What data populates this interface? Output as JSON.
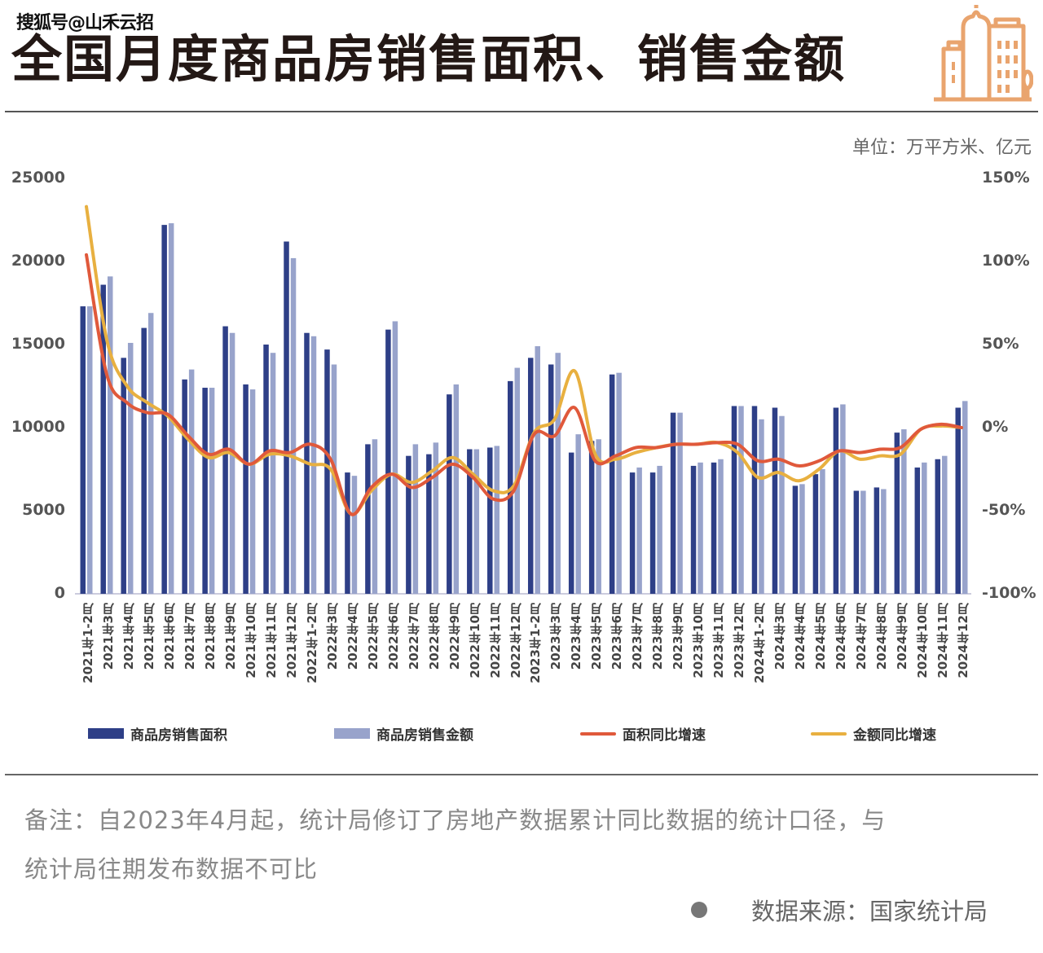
{
  "watermark": "搜狐号@山禾云招",
  "header": {
    "title": "全国月度商品房销售面积、销售金额",
    "logo_icon": "city-buildings-icon",
    "logo_color": "#E9A46E"
  },
  "unit_label": "单位：万平方米、亿元",
  "chart_data": {
    "type": "bar+line",
    "title": "全国月度商品房销售面积、销售金额",
    "xlabel": "",
    "ylabel_left": "万平方米 / 亿元",
    "ylabel_right": "同比增速",
    "ylim_left": [
      0,
      25000
    ],
    "ylim_right": [
      -100,
      150
    ],
    "yticks_left": [
      "25000",
      "20000",
      "15000",
      "10000",
      "5000",
      "0"
    ],
    "yticks_right": [
      "150%",
      "100%",
      "50%",
      "0%",
      "-50%",
      "-100%"
    ],
    "grid": false,
    "legend_position": "bottom",
    "categories": [
      "2021年1-2月",
      "2021年3月",
      "2021年4月",
      "2021年5月",
      "2021年6月",
      "2021年7月",
      "2021年8月",
      "2021年9月",
      "2021年10月",
      "2021年11月",
      "2021年12月",
      "2022年1-2月",
      "2022年3月",
      "2022年4月",
      "2022年5月",
      "2022年6月",
      "2022年7月",
      "2022年8月",
      "2022年9月",
      "2022年10月",
      "2022年11月",
      "2022年12月",
      "2023年1-2月",
      "2023年3月",
      "2023年4月",
      "2023年5月",
      "2023年6月",
      "2023年7月",
      "2023年8月",
      "2023年9月",
      "2023年10月",
      "2023年11月",
      "2023年12月",
      "2024年1-2月",
      "2024年3月",
      "2024年4月",
      "2024年5月",
      "2024年6月",
      "2024年7月",
      "2024年8月",
      "2024年9月",
      "2024年10月",
      "2024年11月",
      "2024年12月"
    ],
    "series": [
      {
        "name": "商品房销售面积",
        "type": "bar",
        "axis": "left",
        "color": "#2E3F87",
        "values": [
          17300,
          18600,
          14200,
          16000,
          22200,
          12900,
          12400,
          16100,
          12600,
          15000,
          21200,
          15700,
          14700,
          7300,
          9000,
          15900,
          8300,
          8400,
          12000,
          8700,
          8800,
          12800,
          14200,
          13800,
          8500,
          9200,
          13200,
          7300,
          7300,
          10900,
          7700,
          7900,
          11300,
          11300,
          11200,
          6500,
          7200,
          11200,
          6200,
          6400,
          9700,
          7600,
          8100,
          11200
        ]
      },
      {
        "name": "商品房销售金额",
        "type": "bar",
        "axis": "left",
        "color": "#98A3CB",
        "values": [
          17300,
          19100,
          15100,
          16900,
          22300,
          13500,
          12400,
          15700,
          12300,
          14500,
          20200,
          15500,
          13800,
          7100,
          9300,
          16400,
          9000,
          9100,
          12600,
          8700,
          8900,
          13600,
          14900,
          14500,
          9600,
          9300,
          13300,
          7600,
          7700,
          10900,
          7900,
          8100,
          11300,
          10500,
          10700,
          6600,
          7500,
          11400,
          6200,
          6300,
          9900,
          7900,
          8300,
          11600
        ]
      },
      {
        "name": "面积同比增速",
        "type": "line",
        "axis": "right",
        "color": "#E0593B",
        "values": [
          104,
          32,
          15,
          9,
          8,
          -5,
          -16,
          -13,
          -22,
          -14,
          -15,
          -10,
          -19,
          -52,
          -36,
          -28,
          -36,
          -30,
          -22,
          -30,
          -43,
          -38,
          -4,
          -5,
          12,
          -20,
          -17,
          -12,
          -12,
          -10,
          -10,
          -9,
          -10,
          -20,
          -19,
          -23,
          -20,
          -14,
          -15,
          -13,
          -12,
          -1,
          2,
          0
        ]
      },
      {
        "name": "金额同比增速",
        "type": "line",
        "axis": "right",
        "color": "#E8B040",
        "values": [
          133,
          53,
          25,
          15,
          7,
          -7,
          -18,
          -15,
          -22,
          -16,
          -17,
          -22,
          -25,
          -52,
          -38,
          -28,
          -33,
          -26,
          -18,
          -28,
          -38,
          -35,
          -3,
          5,
          34,
          -16,
          -19,
          -15,
          -12,
          -10,
          -10,
          -9,
          -15,
          -30,
          -27,
          -32,
          -25,
          -14,
          -19,
          -17,
          -16,
          -1,
          1,
          0
        ]
      }
    ]
  },
  "legend": [
    {
      "label": "商品房销售面积",
      "kind": "bar",
      "color": "#2E3F87"
    },
    {
      "label": "商品房销售金额",
      "kind": "bar",
      "color": "#98A3CB"
    },
    {
      "label": "面积同比增速",
      "kind": "line",
      "color": "#E0593B"
    },
    {
      "label": "金额同比增速",
      "kind": "line",
      "color": "#E8B040"
    }
  ],
  "footer": {
    "note_line1": "备注：自2023年4月起，统计局修订了房地产数据累计同比数据的统计口径，与",
    "note_line2": "统计局往期发布数据不可比",
    "source": "数据来源：国家统计局"
  }
}
